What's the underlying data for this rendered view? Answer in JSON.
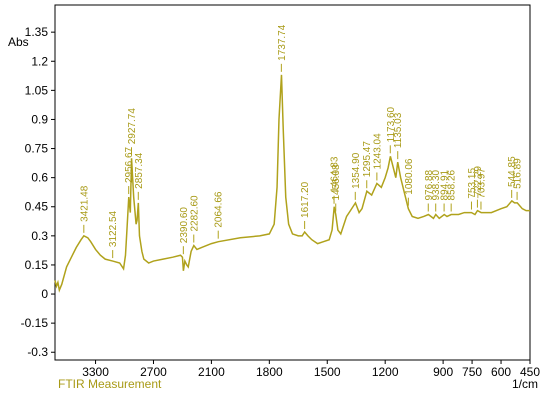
{
  "chart_data": {
    "type": "line",
    "y_unit_label": "Abs",
    "x_unit_label": "1/cm",
    "footer": "FTIR Measurement",
    "xlim": [
      3720,
      450
    ],
    "ylim": [
      -0.34,
      1.49
    ],
    "xticks": [
      3300,
      2700,
      2100,
      1800,
      1500,
      1200,
      900,
      750,
      600,
      450
    ],
    "yticks": [
      -0.3,
      -0.15,
      0,
      0.15,
      0.3,
      0.45,
      0.6,
      0.75,
      0.9,
      1.05,
      1.2,
      1.35
    ],
    "series": [
      {
        "color": "#b0a21c",
        "x": [
          3720,
          3705,
          3690,
          3675,
          3650,
          3600,
          3550,
          3500,
          3450,
          3421,
          3380,
          3350,
          3300,
          3250,
          3200,
          3122,
          3050,
          3010,
          2990,
          2975,
          2956,
          2940,
          2927,
          2905,
          2880,
          2870,
          2857,
          2845,
          2820,
          2800,
          2750,
          2700,
          2600,
          2500,
          2420,
          2400,
          2390,
          2375,
          2355,
          2340,
          2310,
          2282,
          2250,
          2200,
          2100,
          2064,
          1950,
          1850,
          1800,
          1775,
          1760,
          1750,
          1737,
          1728,
          1715,
          1700,
          1680,
          1650,
          1630,
          1617,
          1600,
          1580,
          1550,
          1520,
          1490,
          1475,
          1464,
          1456,
          1445,
          1430,
          1420,
          1400,
          1380,
          1354,
          1335,
          1320,
          1295,
          1270,
          1243,
          1220,
          1200,
          1185,
          1173,
          1155,
          1145,
          1135,
          1120,
          1100,
          1080,
          1060,
          1030,
          1000,
          976,
          950,
          938,
          920,
          894,
          880,
          858,
          820,
          790,
          753,
          735,
          722,
          703,
          650,
          600,
          570,
          544,
          530,
          516,
          490,
          470,
          450
        ],
        "values": [
          0.07,
          0.04,
          0.06,
          0.02,
          0.05,
          0.14,
          0.19,
          0.24,
          0.28,
          0.3,
          0.29,
          0.27,
          0.23,
          0.2,
          0.18,
          0.17,
          0.16,
          0.13,
          0.2,
          0.33,
          0.5,
          0.42,
          0.7,
          0.5,
          0.36,
          0.38,
          0.47,
          0.3,
          0.22,
          0.18,
          0.16,
          0.17,
          0.18,
          0.19,
          0.2,
          0.19,
          0.12,
          0.17,
          0.15,
          0.14,
          0.22,
          0.25,
          0.23,
          0.24,
          0.26,
          0.27,
          0.29,
          0.3,
          0.31,
          0.36,
          0.55,
          0.9,
          1.13,
          0.85,
          0.5,
          0.36,
          0.31,
          0.3,
          0.3,
          0.32,
          0.3,
          0.28,
          0.26,
          0.27,
          0.28,
          0.33,
          0.45,
          0.41,
          0.33,
          0.31,
          0.34,
          0.4,
          0.43,
          0.47,
          0.42,
          0.44,
          0.53,
          0.51,
          0.57,
          0.55,
          0.6,
          0.65,
          0.71,
          0.64,
          0.6,
          0.68,
          0.6,
          0.52,
          0.44,
          0.4,
          0.39,
          0.4,
          0.41,
          0.39,
          0.41,
          0.39,
          0.41,
          0.4,
          0.41,
          0.41,
          0.42,
          0.42,
          0.41,
          0.43,
          0.42,
          0.42,
          0.44,
          0.45,
          0.48,
          0.47,
          0.47,
          0.44,
          0.43,
          0.43
        ]
      }
    ],
    "annotations": [
      {
        "label": "3421.48",
        "x": 3421.48,
        "y": 0.3
      },
      {
        "label": "3122.54",
        "x": 3122.54,
        "y": 0.17
      },
      {
        "label": "2956.67",
        "x": 2956.67,
        "y": 0.5
      },
      {
        "label": "2927.74",
        "x": 2927.74,
        "y": 0.7
      },
      {
        "label": "2857.34",
        "x": 2857.34,
        "y": 0.47
      },
      {
        "label": "2390.60",
        "x": 2390.6,
        "y": 0.19
      },
      {
        "label": "2282.60",
        "x": 2282.6,
        "y": 0.25
      },
      {
        "label": "2064.66",
        "x": 2064.66,
        "y": 0.27
      },
      {
        "label": "1737.74",
        "x": 1737.74,
        "y": 1.13
      },
      {
        "label": "1617.20",
        "x": 1617.2,
        "y": 0.32
      },
      {
        "label": "1464.83",
        "x": 1464.83,
        "y": 0.45
      },
      {
        "label": "1456.08",
        "x": 1456.08,
        "y": 0.41
      },
      {
        "label": "1354.90",
        "x": 1354.9,
        "y": 0.47
      },
      {
        "label": "1295.47",
        "x": 1295.47,
        "y": 0.53
      },
      {
        "label": "1243.04",
        "x": 1243.04,
        "y": 0.57
      },
      {
        "label": "1173.60",
        "x": 1173.6,
        "y": 0.71
      },
      {
        "label": "1135.03",
        "x": 1135.03,
        "y": 0.68
      },
      {
        "label": "1080.06",
        "x": 1080.06,
        "y": 0.44
      },
      {
        "label": "976.88",
        "x": 976.88,
        "y": 0.41
      },
      {
        "label": "938.30",
        "x": 938.3,
        "y": 0.41
      },
      {
        "label": "894.91",
        "x": 894.91,
        "y": 0.41
      },
      {
        "label": "858.26",
        "x": 858.26,
        "y": 0.41
      },
      {
        "label": "753.15",
        "x": 753.15,
        "y": 0.42
      },
      {
        "label": "722.29",
        "x": 722.29,
        "y": 0.43
      },
      {
        "label": "703.97",
        "x": 703.97,
        "y": 0.42
      },
      {
        "label": "544.85",
        "x": 544.85,
        "y": 0.48
      },
      {
        "label": "516.89",
        "x": 516.89,
        "y": 0.47
      }
    ]
  }
}
